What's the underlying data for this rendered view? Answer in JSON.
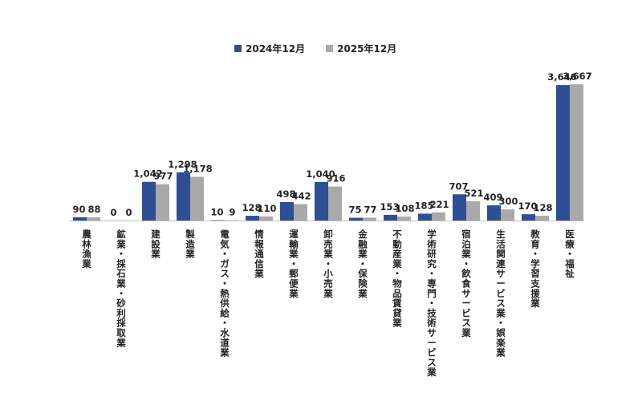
{
  "chart_data": {
    "type": "bar",
    "title": "",
    "xlabel": "",
    "ylabel": "",
    "legend_position": "top-center",
    "grid": false,
    "ylim": [
      0,
      3800
    ],
    "categories": [
      "農林漁業",
      "鉱業・採石業・砂利採取業",
      "建設業",
      "製造業",
      "電気・ガス・熱供給・水道業",
      "情報通信業",
      "運輸業・郵便業",
      "卸売業・小売業",
      "金融業・保険業",
      "不動産業・物品賃貸業",
      "学術研究・専門・技術サービス業",
      "宿泊業・飲食サービス業",
      "生活関連サービス業・娯楽業",
      "教育・学習支援業",
      "医療・福祉"
    ],
    "series": [
      {
        "name": "2024年12月",
        "color": "#2f4f94",
        "values": [
          90,
          0,
          1042,
          1298,
          10,
          128,
          498,
          1040,
          75,
          153,
          185,
          707,
          409,
          170,
          3646
        ],
        "labels": [
          "90",
          "0",
          "1,042",
          "1,298",
          "10",
          "128",
          "498",
          "1,040",
          "75",
          "153",
          "185",
          "707",
          "409",
          "170",
          "3,646"
        ]
      },
      {
        "name": "2025年12月",
        "color": "#a9a9a9",
        "values": [
          88,
          0,
          977,
          1178,
          9,
          110,
          442,
          916,
          77,
          108,
          221,
          521,
          300,
          128,
          3667
        ],
        "labels": [
          "88",
          "0",
          "977",
          "1,178",
          "9",
          "110",
          "442",
          "916",
          "77",
          "108",
          "221",
          "521",
          "300",
          "128",
          "3,667"
        ]
      }
    ]
  }
}
